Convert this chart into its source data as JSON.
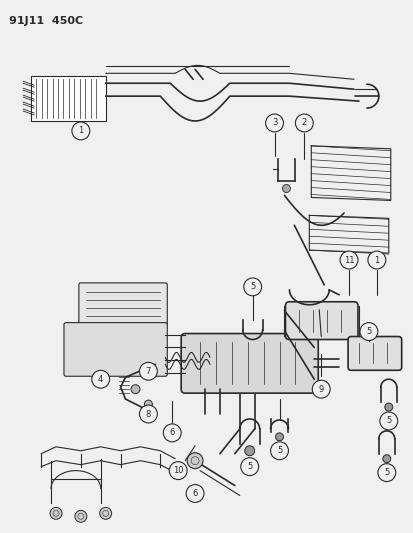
{
  "title": "91J11  450C",
  "bg_color": "#f0f0f0",
  "line_color": "#2a2a2a",
  "fig_width": 4.14,
  "fig_height": 5.33,
  "dpi": 100
}
